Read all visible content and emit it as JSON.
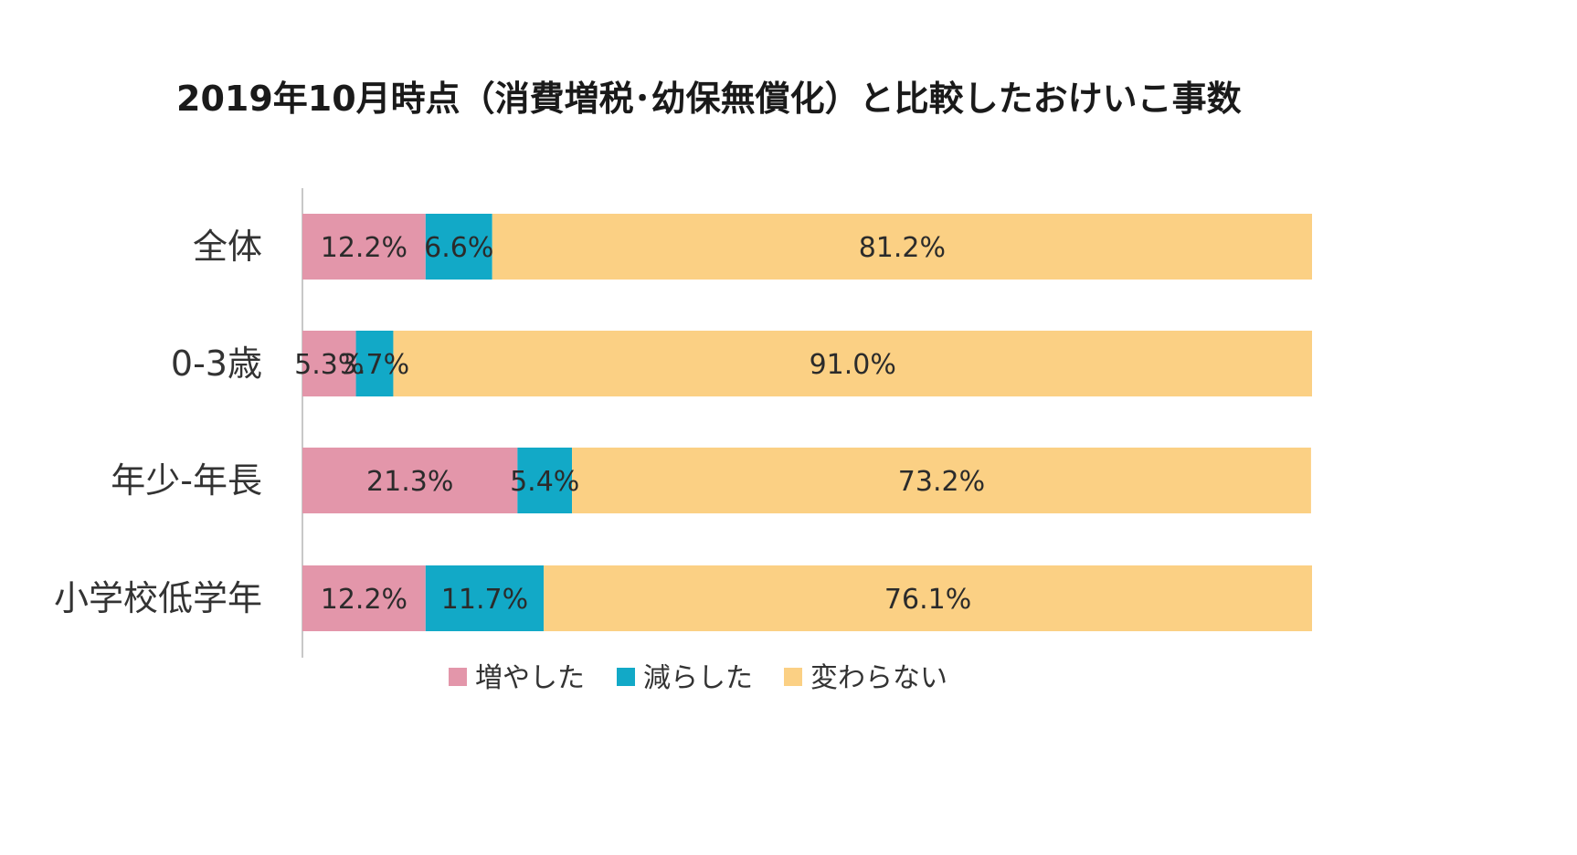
{
  "chart_data": {
    "type": "bar",
    "orientation": "horizontal",
    "stacked": true,
    "title": "2019年10月時点（消費増税･幼保無償化）と比較したおけいこ事数",
    "categories": [
      "全体",
      "0-3歳",
      "年少-年長",
      "小学校低学年"
    ],
    "series": [
      {
        "name": "増やした",
        "color": "#e396aa",
        "values": [
          12.2,
          5.3,
          21.3,
          12.2
        ],
        "labels": [
          "12.2%",
          "5.3%",
          "21.3%",
          "12.2%"
        ]
      },
      {
        "name": "減らした",
        "color": "#12a9c7",
        "values": [
          6.6,
          3.7,
          5.4,
          11.7
        ],
        "labels": [
          "6.6%",
          "3.7%",
          "5.4%",
          "11.7%"
        ]
      },
      {
        "name": "変わらない",
        "color": "#fbd084",
        "values": [
          81.2,
          91.0,
          73.2,
          76.1
        ],
        "labels": [
          "81.2%",
          "91.0%",
          "73.2%",
          "76.1%"
        ]
      }
    ],
    "xlim": [
      0,
      100
    ],
    "legend": "bottom",
    "grid": false
  }
}
